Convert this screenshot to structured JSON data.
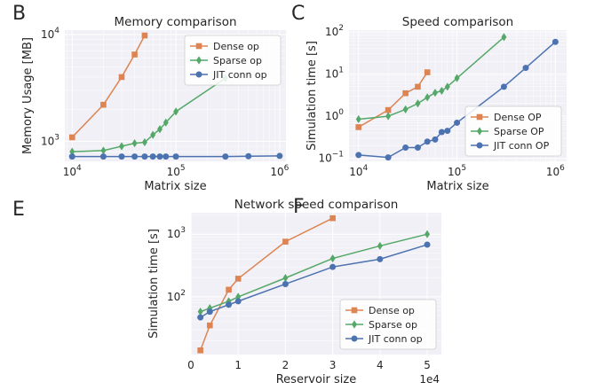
{
  "colors": {
    "dense": "#dd8452",
    "sparse": "#55a868",
    "jit": "#4c72b0"
  },
  "panels": [
    {
      "letter": "B"
    },
    {
      "letter": "C"
    },
    {
      "letter": "E"
    },
    {
      "letter": "F"
    }
  ],
  "chart_data": [
    {
      "type": "line",
      "title": "Memory comparison",
      "xlabel": "Matrix size",
      "ylabel": "Memory Usage [MB]",
      "xscale": "log",
      "yscale": "log",
      "xlim": [
        8500,
        1150000
      ],
      "ylim": [
        650,
        11000
      ],
      "xticks": [
        10000,
        100000,
        1000000
      ],
      "xtick_labels": [
        {
          "base": "10",
          "exp": "4"
        },
        {
          "base": "10",
          "exp": "5"
        },
        {
          "base": "10",
          "exp": "6"
        }
      ],
      "yticks": [
        1000,
        10000
      ],
      "ytick_labels": [
        {
          "base": "10",
          "exp": "3"
        },
        {
          "base": "10",
          "exp": "4"
        }
      ],
      "legend_position": "upper right",
      "series": [
        {
          "name": "Dense op",
          "key": "dense",
          "marker": "square",
          "points": [
            [
              10000,
              1090
            ],
            [
              20000,
              2200
            ],
            [
              30000,
              4000
            ],
            [
              40000,
              6500
            ],
            [
              50000,
              9800
            ]
          ]
        },
        {
          "name": "Sparse op",
          "key": "sparse",
          "marker": "diamond",
          "points": [
            [
              10000,
              800
            ],
            [
              20000,
              820
            ],
            [
              30000,
              900
            ],
            [
              40000,
              960
            ],
            [
              50000,
              980
            ],
            [
              60000,
              1150
            ],
            [
              70000,
              1300
            ],
            [
              80000,
              1500
            ],
            [
              100000,
              1900
            ],
            [
              300000,
              3900
            ]
          ]
        },
        {
          "name": "JIT conn op",
          "key": "jit",
          "marker": "circle",
          "points": [
            [
              10000,
              720
            ],
            [
              20000,
              720
            ],
            [
              30000,
              720
            ],
            [
              40000,
              720
            ],
            [
              50000,
              720
            ],
            [
              60000,
              720
            ],
            [
              70000,
              720
            ],
            [
              80000,
              720
            ],
            [
              100000,
              720
            ],
            [
              300000,
              720
            ],
            [
              500000,
              725
            ],
            [
              1000000,
              730
            ]
          ]
        }
      ]
    },
    {
      "type": "line",
      "title": "Speed comparison",
      "xlabel": "Matrix size",
      "ylabel": "Simulation time [s]",
      "xscale": "log",
      "yscale": "log",
      "xlim": [
        8000,
        1300000
      ],
      "ylim": [
        0.085,
        110
      ],
      "xticks": [
        10000,
        100000,
        1000000
      ],
      "xtick_labels": [
        {
          "base": "10",
          "exp": "4"
        },
        {
          "base": "10",
          "exp": "5"
        },
        {
          "base": "10",
          "exp": "6"
        }
      ],
      "yticks": [
        0.1,
        1,
        10,
        100
      ],
      "ytick_labels": [
        {
          "base": "10",
          "exp": "−1"
        },
        {
          "base": "10",
          "exp": "0"
        },
        {
          "base": "10",
          "exp": "1"
        },
        {
          "base": "10",
          "exp": "2"
        }
      ],
      "legend_position": "lower right",
      "series": [
        {
          "name": "Dense OP",
          "key": "dense",
          "marker": "square",
          "points": [
            [
              10000,
              0.55
            ],
            [
              20000,
              1.4
            ],
            [
              30000,
              3.5
            ],
            [
              40000,
              5
            ],
            [
              50000,
              11
            ]
          ]
        },
        {
          "name": "Sparse OP",
          "key": "sparse",
          "marker": "diamond",
          "points": [
            [
              10000,
              0.85
            ],
            [
              20000,
              1.0
            ],
            [
              30000,
              1.45
            ],
            [
              40000,
              2.0
            ],
            [
              50000,
              2.8
            ],
            [
              60000,
              3.6
            ],
            [
              70000,
              4.0
            ],
            [
              80000,
              5.0
            ],
            [
              100000,
              8.0
            ],
            [
              300000,
              75
            ]
          ]
        },
        {
          "name": "JIT conn OP",
          "key": "jit",
          "marker": "circle",
          "points": [
            [
              10000,
              0.12
            ],
            [
              20000,
              0.105
            ],
            [
              30000,
              0.18
            ],
            [
              40000,
              0.18
            ],
            [
              50000,
              0.25
            ],
            [
              60000,
              0.28
            ],
            [
              70000,
              0.42
            ],
            [
              80000,
              0.45
            ],
            [
              100000,
              0.7
            ],
            [
              300000,
              5
            ],
            [
              500000,
              14
            ],
            [
              1000000,
              58
            ]
          ]
        }
      ]
    },
    {
      "type": "line",
      "title": "Network speed comparison",
      "xlabel": "Reservoir size",
      "ylabel": "Simulation time [s]",
      "xscale": "linear",
      "yscale": "log",
      "x_multiplier_label": "1e4",
      "xlim": [
        0,
        5.3
      ],
      "ylim": [
        12,
        2200
      ],
      "xticks": [
        0,
        1,
        2,
        3,
        4,
        5
      ],
      "xtick_labels": [
        "0",
        "1",
        "2",
        "3",
        "4",
        "5"
      ],
      "yticks": [
        100,
        1000
      ],
      "ytick_labels": [
        {
          "base": "10",
          "exp": "2"
        },
        {
          "base": "10",
          "exp": "3"
        }
      ],
      "legend_position": "lower right",
      "series": [
        {
          "name": "Dense op",
          "key": "dense",
          "marker": "square",
          "points": [
            [
              0.2,
              14
            ],
            [
              0.4,
              35
            ],
            [
              0.8,
              130
            ],
            [
              1.0,
              195
            ],
            [
              2.0,
              760
            ],
            [
              3.0,
              1800
            ]
          ]
        },
        {
          "name": "Sparse op",
          "key": "sparse",
          "marker": "diamond",
          "points": [
            [
              0.2,
              58
            ],
            [
              0.4,
              66
            ],
            [
              0.8,
              85
            ],
            [
              1.0,
              100
            ],
            [
              2.0,
              200
            ],
            [
              3.0,
              410
            ],
            [
              4.0,
              650
            ],
            [
              5.0,
              1000
            ]
          ]
        },
        {
          "name": "JIT conn op",
          "key": "jit",
          "marker": "circle",
          "points": [
            [
              0.2,
              47
            ],
            [
              0.4,
              58
            ],
            [
              0.8,
              75
            ],
            [
              1.0,
              85
            ],
            [
              2.0,
              160
            ],
            [
              3.0,
              300
            ],
            [
              4.0,
              400
            ],
            [
              5.0,
              680
            ]
          ]
        }
      ]
    }
  ]
}
